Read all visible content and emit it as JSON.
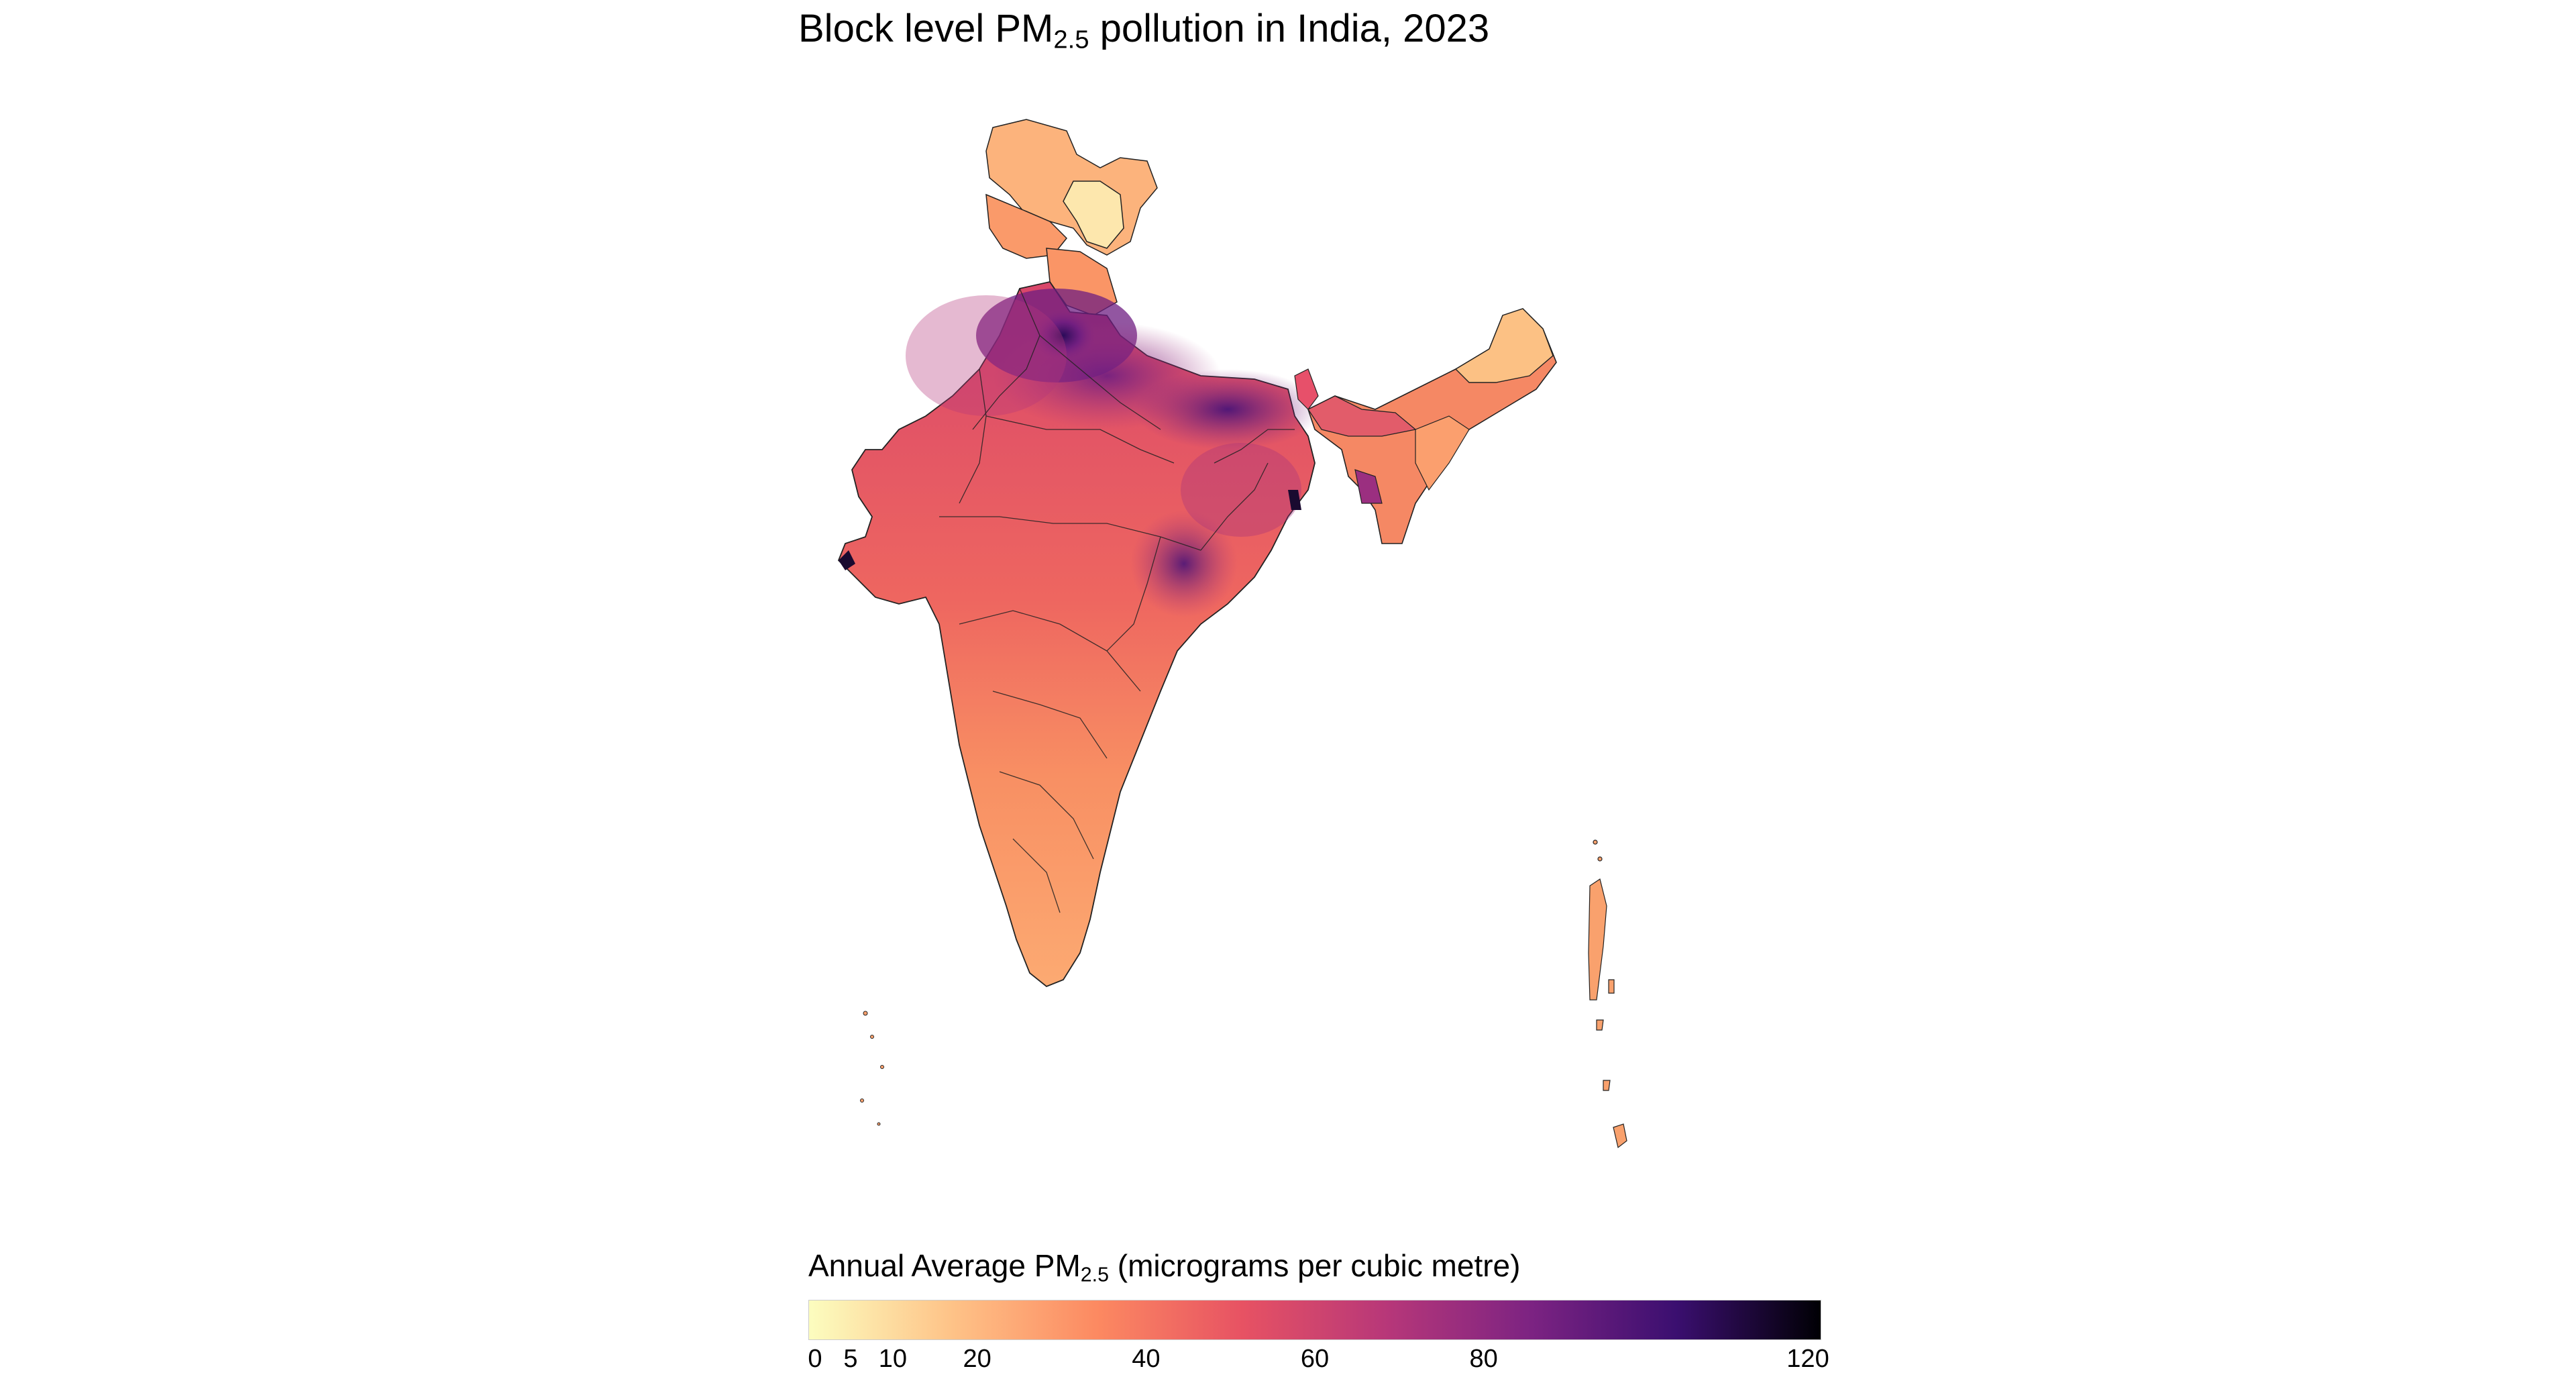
{
  "title": {
    "prefix": "Block level PM",
    "subscript": "2.5",
    "suffix": " pollution in India, 2023"
  },
  "legend": {
    "title_prefix": "Annual Average PM",
    "title_subscript": "2.5",
    "title_suffix": " (micrograms per cubic metre)",
    "min": 0,
    "max": 120,
    "ticks": [
      "0",
      "5",
      "10",
      "20",
      "40",
      "60",
      "80",
      "120"
    ],
    "tick_values": [
      0,
      5,
      10,
      20,
      40,
      60,
      80,
      120
    ],
    "colors": [
      "#fcfdbf",
      "#fec287",
      "#fc8961",
      "#e75263",
      "#b73779",
      "#7c2382",
      "#3b0f70",
      "#000004"
    ]
  },
  "map": {
    "country": "India",
    "palette_low": "#fcfdbf",
    "palette_high": "#000004",
    "border_color": "#222222"
  }
}
